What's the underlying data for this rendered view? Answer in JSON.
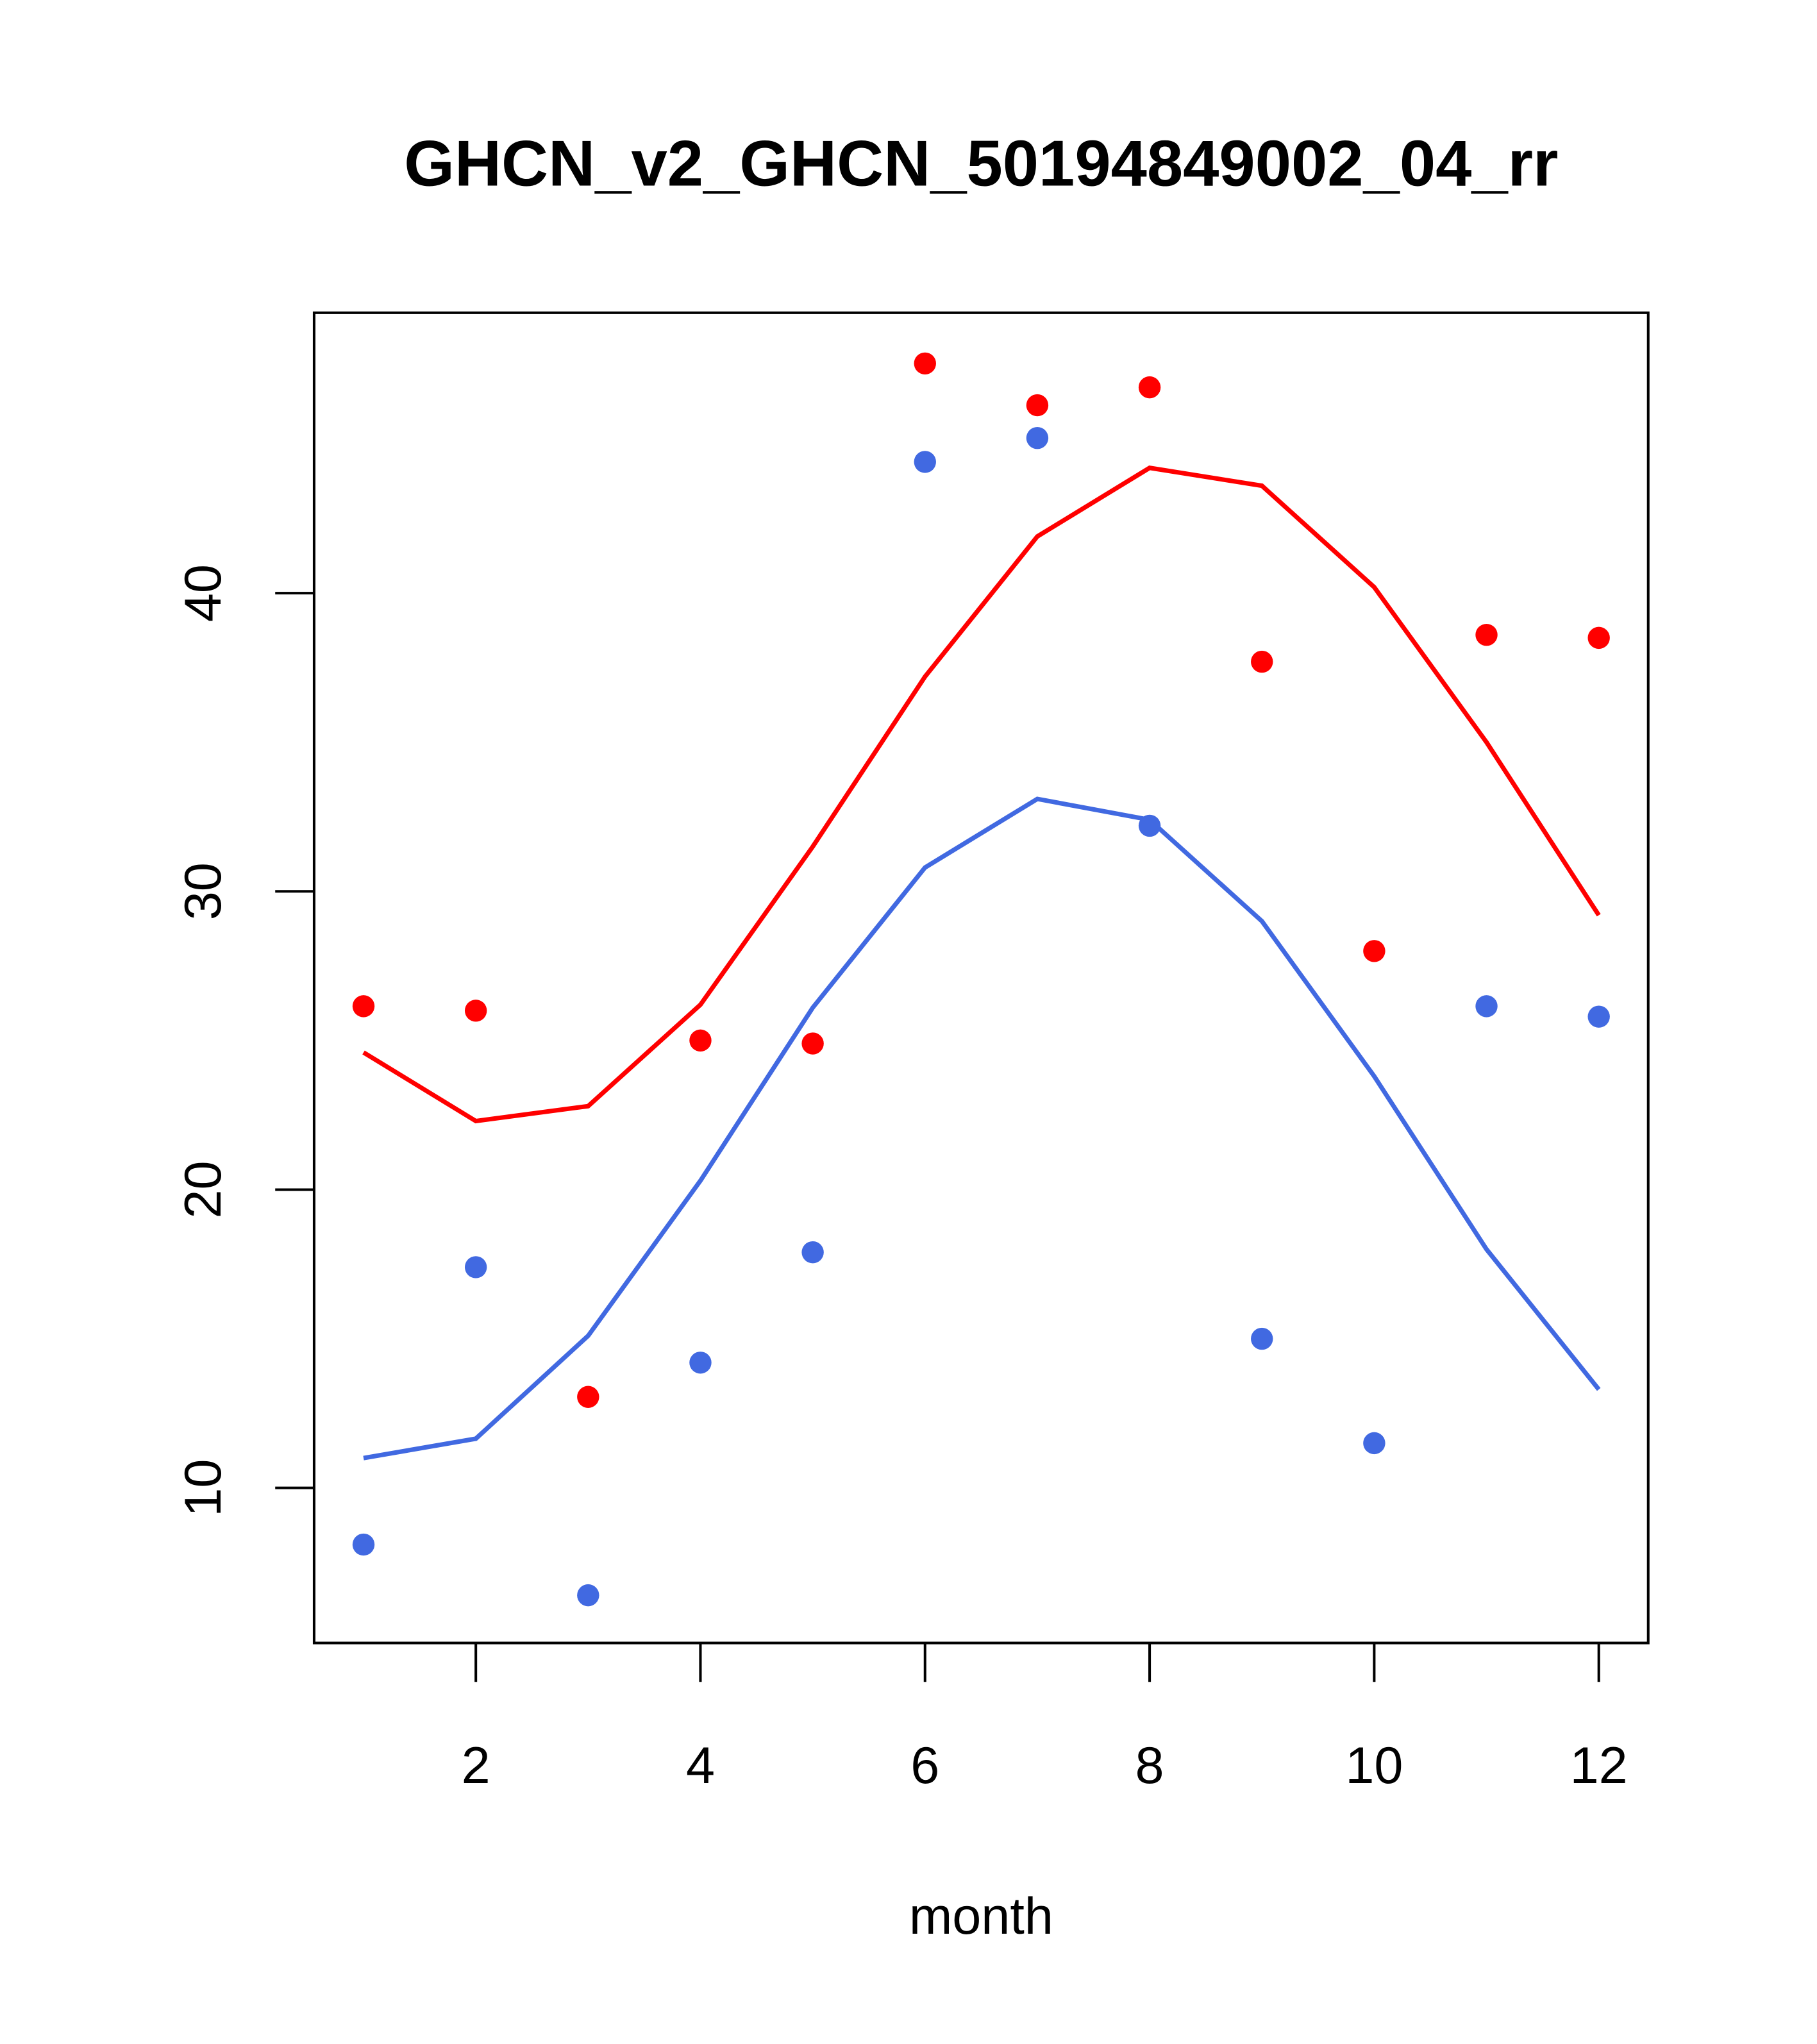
{
  "chart_data": {
    "type": "line",
    "title": "GHCN_v2_GHCN_50194849002_04_rr",
    "xlabel": "month",
    "ylabel": "",
    "xlim": [
      0.56,
      12.44
    ],
    "ylim": [
      4.8,
      49.4
    ],
    "x_ticks": [
      2,
      4,
      6,
      8,
      10,
      12
    ],
    "y_ticks": [
      10,
      20,
      30,
      40
    ],
    "grid": false,
    "x": [
      1,
      2,
      3,
      4,
      5,
      6,
      7,
      8,
      9,
      10,
      11,
      12
    ],
    "series": [
      {
        "name": "red points",
        "kind": "points",
        "color": "#ff0000",
        "values": [
          26.15,
          26.0,
          13.05,
          25.0,
          24.9,
          47.7,
          46.3,
          46.9,
          37.7,
          28.0,
          38.6,
          38.5
        ]
      },
      {
        "name": "blue points",
        "kind": "points",
        "color": "#4169e1",
        "values": [
          8.1,
          17.4,
          6.4,
          14.2,
          17.9,
          44.4,
          45.2,
          32.2,
          15.0,
          11.5,
          26.15,
          25.8
        ]
      },
      {
        "name": "red line",
        "kind": "line",
        "color": "#ff0000",
        "values": [
          24.6,
          22.3,
          22.8,
          26.2,
          31.5,
          37.2,
          41.9,
          44.2,
          43.6,
          40.2,
          35.0,
          29.2
        ]
      },
      {
        "name": "blue line",
        "kind": "line",
        "color": "#4169e1",
        "values": [
          11.0,
          11.65,
          15.1,
          20.3,
          26.1,
          30.8,
          33.1,
          32.4,
          29.0,
          23.8,
          18.0,
          13.3
        ]
      }
    ]
  }
}
